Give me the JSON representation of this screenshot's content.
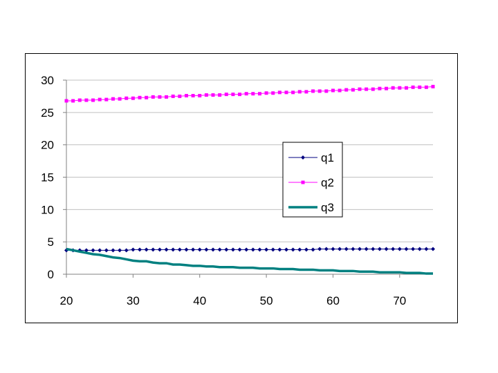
{
  "chart_data": {
    "type": "line",
    "x": [
      20,
      21,
      22,
      23,
      24,
      25,
      26,
      27,
      28,
      29,
      30,
      31,
      32,
      33,
      34,
      35,
      36,
      37,
      38,
      39,
      40,
      41,
      42,
      43,
      44,
      45,
      46,
      47,
      48,
      49,
      50,
      51,
      52,
      53,
      54,
      55,
      56,
      57,
      58,
      59,
      60,
      61,
      62,
      63,
      64,
      65,
      66,
      67,
      68,
      69,
      70,
      71,
      72,
      73,
      74,
      75
    ],
    "series": [
      {
        "name": "q1",
        "color": "#000080",
        "marker": "diamond",
        "values": [
          3.7,
          3.7,
          3.7,
          3.7,
          3.7,
          3.7,
          3.7,
          3.7,
          3.7,
          3.7,
          3.8,
          3.8,
          3.8,
          3.8,
          3.8,
          3.8,
          3.8,
          3.8,
          3.8,
          3.8,
          3.8,
          3.8,
          3.8,
          3.8,
          3.8,
          3.8,
          3.8,
          3.8,
          3.8,
          3.8,
          3.8,
          3.8,
          3.8,
          3.8,
          3.8,
          3.8,
          3.8,
          3.8,
          3.9,
          3.9,
          3.9,
          3.9,
          3.9,
          3.9,
          3.9,
          3.9,
          3.9,
          3.9,
          3.9,
          3.9,
          3.9,
          3.9,
          3.9,
          3.9,
          3.9,
          3.9
        ]
      },
      {
        "name": "q2",
        "color": "#FF00FF",
        "marker": "square",
        "values": [
          26.8,
          26.8,
          26.9,
          26.9,
          26.9,
          27.0,
          27.0,
          27.1,
          27.1,
          27.2,
          27.2,
          27.3,
          27.3,
          27.4,
          27.4,
          27.4,
          27.5,
          27.5,
          27.6,
          27.6,
          27.6,
          27.7,
          27.7,
          27.7,
          27.8,
          27.8,
          27.8,
          27.9,
          27.9,
          27.9,
          28.0,
          28.0,
          28.1,
          28.1,
          28.1,
          28.2,
          28.2,
          28.3,
          28.3,
          28.3,
          28.4,
          28.4,
          28.5,
          28.5,
          28.6,
          28.6,
          28.6,
          28.7,
          28.7,
          28.8,
          28.8,
          28.8,
          28.9,
          28.9,
          28.9,
          29.0
        ]
      },
      {
        "name": "q3",
        "color": "#008080",
        "marker": "none",
        "values": [
          3.9,
          3.7,
          3.5,
          3.3,
          3.1,
          3.0,
          2.8,
          2.6,
          2.5,
          2.3,
          2.1,
          2.0,
          2.0,
          1.8,
          1.7,
          1.7,
          1.5,
          1.5,
          1.4,
          1.3,
          1.3,
          1.2,
          1.2,
          1.1,
          1.1,
          1.1,
          1.0,
          1.0,
          1.0,
          0.9,
          0.9,
          0.9,
          0.8,
          0.8,
          0.8,
          0.7,
          0.7,
          0.7,
          0.6,
          0.6,
          0.6,
          0.5,
          0.5,
          0.5,
          0.4,
          0.4,
          0.4,
          0.3,
          0.3,
          0.3,
          0.3,
          0.2,
          0.2,
          0.2,
          0.1,
          0.1
        ]
      }
    ],
    "xlim": [
      20,
      75
    ],
    "ylim": [
      0,
      30
    ],
    "x_ticks": [
      "20",
      "30",
      "40",
      "50",
      "60",
      "70"
    ],
    "y_ticks": [
      "0",
      "5",
      "10",
      "15",
      "20",
      "25",
      "30"
    ],
    "grid": "horizontal",
    "legend": "center-right"
  }
}
